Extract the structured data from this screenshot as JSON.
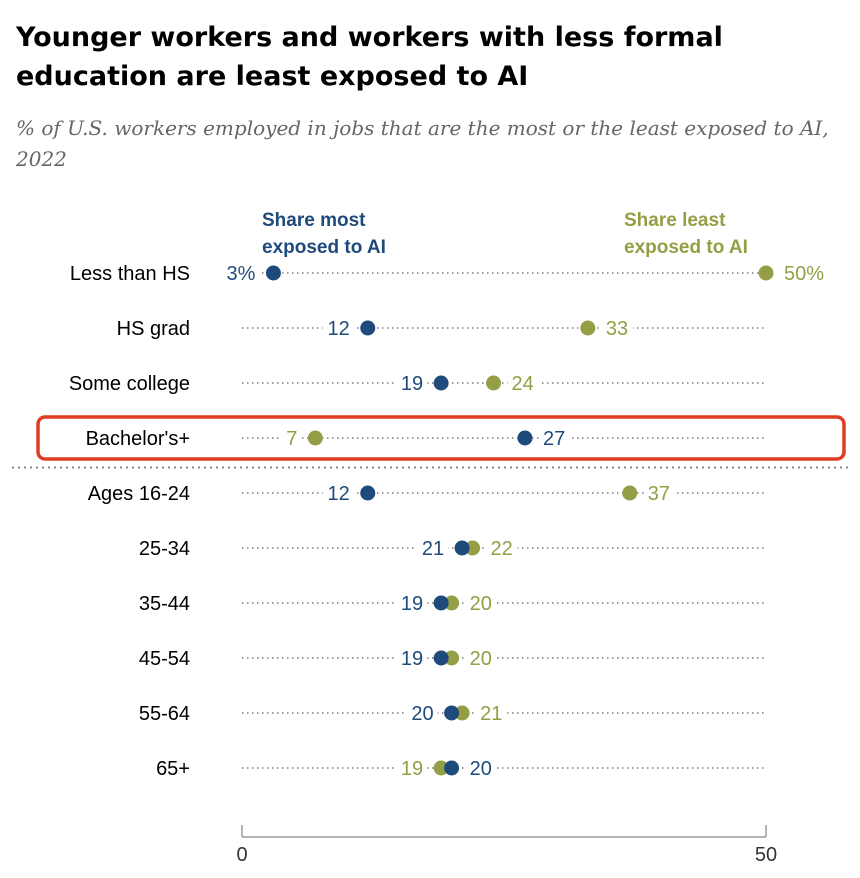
{
  "title": "Younger workers and workers with less formal education are least exposed to AI",
  "subtitle": "% of U.S. workers employed in jobs that are the most or the least exposed to AI, 2022",
  "colors": {
    "most": "#1f4a7c",
    "least": "#959e45",
    "highlight": "#e03b24",
    "dots": "#7d7d7d"
  },
  "chart_data": {
    "type": "scatter",
    "subtype": "dot-plot",
    "title": "Younger workers and workers with less formal education are least exposed to AI",
    "subtitle": "% of U.S. workers employed in jobs that are the most or the least exposed to AI, 2022",
    "xlim": [
      0,
      50
    ],
    "x_ticks": [
      "0",
      "50"
    ],
    "highlighted_category": "Bachelor's+",
    "categories": [
      "Less than HS",
      "HS grad",
      "Some college",
      "Bachelor's+",
      "Ages 16-24",
      "25-34",
      "35-44",
      "45-54",
      "55-64",
      "65+"
    ],
    "series": [
      {
        "name": "Share most exposed to AI",
        "key": "most",
        "values": [
          3,
          12,
          19,
          27,
          12,
          21,
          19,
          19,
          20,
          20
        ],
        "labels": [
          "3%",
          "12",
          "19",
          "27",
          "12",
          "21",
          "19",
          "19",
          "20",
          "20"
        ]
      },
      {
        "name": "Share least exposed to AI",
        "key": "least",
        "values": [
          50,
          33,
          24,
          7,
          37,
          22,
          20,
          20,
          21,
          19
        ],
        "labels": [
          "50%",
          "33",
          "24",
          "7",
          "37",
          "22",
          "20",
          "20",
          "21",
          "19"
        ]
      }
    ]
  }
}
